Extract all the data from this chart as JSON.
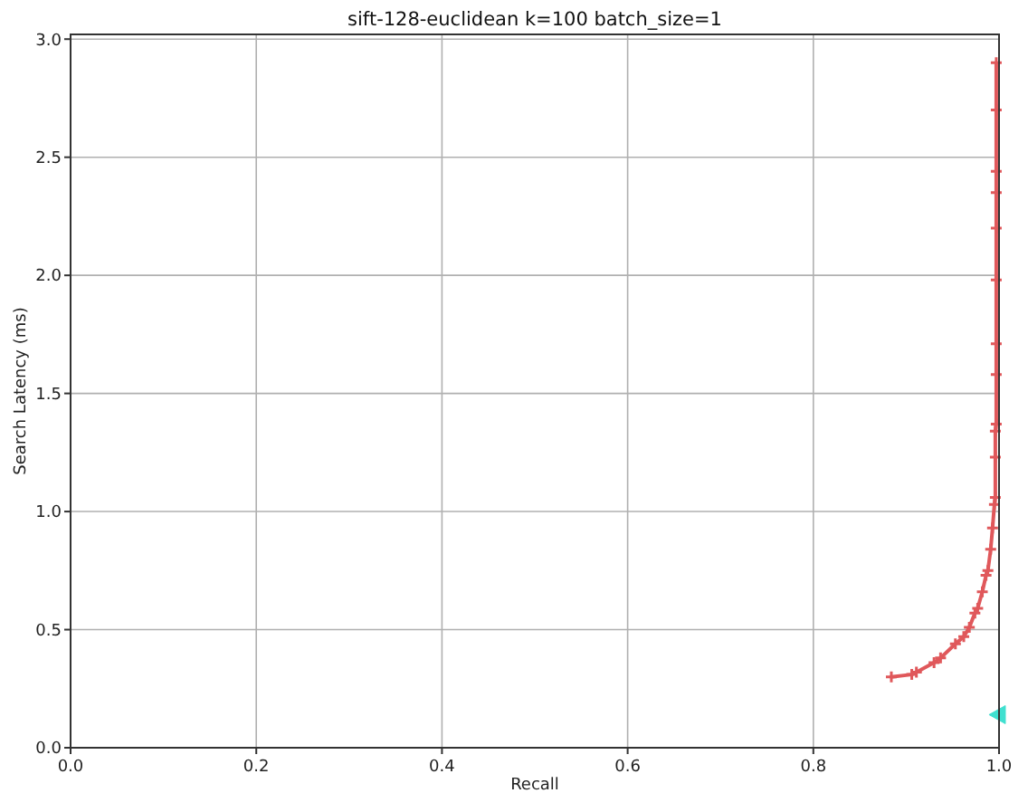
{
  "chart_data": {
    "type": "line",
    "title": "sift-128-euclidean k=100 batch_size=1",
    "xlabel": "Recall",
    "ylabel": "Search Latency (ms)",
    "xlim": [
      0,
      1
    ],
    "ylim": [
      0,
      3.02
    ],
    "xticks": [
      {
        "value": 0,
        "label": "0.0"
      },
      {
        "value": 0.2,
        "label": "0.2"
      },
      {
        "value": 0.4,
        "label": "0.4"
      },
      {
        "value": 0.6,
        "label": "0.6"
      },
      {
        "value": 0.8,
        "label": "0.8"
      },
      {
        "value": 1,
        "label": "1.0"
      }
    ],
    "yticks": [
      {
        "value": 0,
        "label": "0.0"
      },
      {
        "value": 0.5,
        "label": "0.5"
      },
      {
        "value": 1,
        "label": "1.0"
      },
      {
        "value": 1.5,
        "label": "1.5"
      },
      {
        "value": 2,
        "label": "2.0"
      },
      {
        "value": 2.5,
        "label": "2.5"
      },
      {
        "value": 3,
        "label": "3.0"
      }
    ],
    "grid": true,
    "marker": "cross",
    "line_style": "solid",
    "series": [
      {
        "color": "#e0585b",
        "x": [
          0.884,
          0.906,
          0.911,
          0.93,
          0.937,
          0.953,
          0.962,
          0.968,
          0.974,
          0.977,
          0.982,
          0.986,
          0.988,
          0.991,
          0.993,
          0.995,
          0.996,
          0.996,
          0.996,
          0.997,
          0.997,
          0.997,
          0.997,
          0.997,
          0.997,
          0.997,
          0.997,
          0.997
        ],
        "values": [
          0.3,
          0.31,
          0.32,
          0.36,
          0.38,
          0.44,
          0.47,
          0.51,
          0.57,
          0.59,
          0.66,
          0.73,
          0.75,
          0.84,
          0.93,
          1.03,
          1.06,
          1.23,
          1.34,
          1.37,
          1.58,
          1.71,
          1.98,
          2.2,
          2.35,
          2.44,
          2.7,
          2.9
        ]
      },
      {
        "type": "scatter",
        "color": "#40e0d0",
        "marker": "triangle",
        "x": [
          0.999
        ],
        "values": [
          0.14
        ]
      }
    ]
  }
}
